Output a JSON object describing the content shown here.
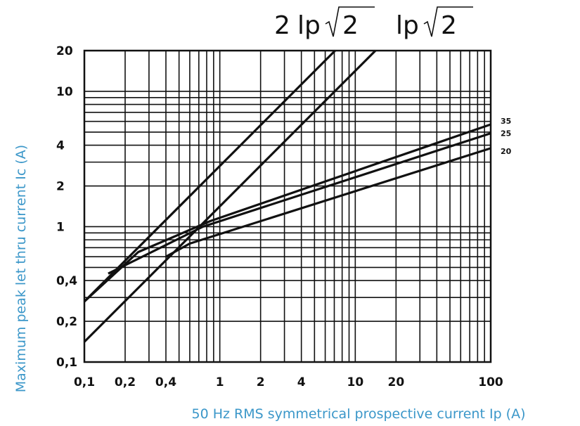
{
  "chart_data": {
    "type": "line",
    "x_scale": "log",
    "y_scale": "log",
    "xlim": [
      0.1,
      100
    ],
    "ylim": [
      0.1,
      20
    ],
    "grid": true,
    "xlabel": "50 Hz RMS symmetrical prospective current Ip (A)",
    "ylabel": "Maximum peak let thru current Ic (A)",
    "x_tick_labels": [
      "0,1",
      "0,2",
      "0,4",
      "1",
      "2",
      "4",
      "10",
      "20",
      "100"
    ],
    "x_tick_values": [
      0.1,
      0.2,
      0.4,
      1,
      2,
      4,
      10,
      20,
      100
    ],
    "y_tick_labels": [
      "0,1",
      "0,2",
      "0,4",
      "1",
      "2",
      "4",
      "10",
      "20"
    ],
    "y_tick_values": [
      0.1,
      0.2,
      0.4,
      1,
      2,
      4,
      10,
      20
    ],
    "formula_labels": {
      "first": {
        "coef": "2",
        "var": "Ip",
        "radicand": "2"
      },
      "second": {
        "var": "Ip",
        "radicand": "2"
      }
    },
    "series": [
      {
        "key": "2ip",
        "x": [
          0.1,
          7.1
        ],
        "y": [
          0.28,
          20
        ]
      },
      {
        "key": "ip",
        "x": [
          0.1,
          14.1
        ],
        "y": [
          0.141,
          20
        ]
      },
      {
        "name": "35",
        "x": [
          0.1,
          0.25,
          0.85,
          100
        ],
        "y": [
          0.28,
          0.65,
          1.1,
          5.7
        ]
      },
      {
        "name": "25",
        "x": [
          0.15,
          0.75,
          100
        ],
        "y": [
          0.45,
          1.0,
          4.9
        ]
      },
      {
        "name": "20",
        "x": [
          0.4,
          0.6,
          100
        ],
        "y": [
          0.6,
          0.75,
          3.8
        ]
      }
    ]
  }
}
